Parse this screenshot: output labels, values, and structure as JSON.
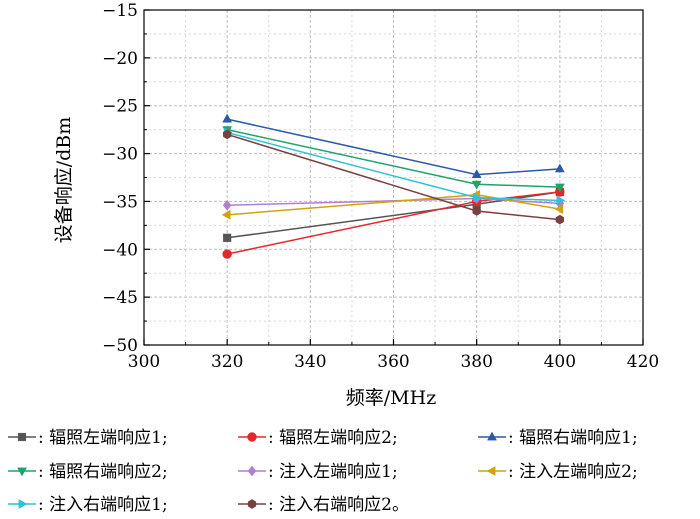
{
  "chart_data": {
    "type": "line",
    "xlabel": "频率/MHz",
    "ylabel": "设备响应/dBm",
    "xlim": [
      300,
      420
    ],
    "ylim": [
      -50,
      -15
    ],
    "xticks": [
      300,
      320,
      340,
      360,
      380,
      400,
      420
    ],
    "yticks": [
      -50,
      -45,
      -40,
      -35,
      -30,
      -25,
      -20,
      -15
    ],
    "grid": true,
    "legend_position": "bottom",
    "x": [
      320,
      380,
      400
    ],
    "series": [
      {
        "legend_text": ": 辐照左端响应1;",
        "marker": "square",
        "color": "#555555",
        "values": [
          -38.8,
          -35.3,
          -34.0
        ]
      },
      {
        "legend_text": ": 辐照左端响应2;",
        "marker": "circle",
        "color": "#e8262a",
        "values": [
          -40.5,
          -35.0,
          -34.0
        ]
      },
      {
        "legend_text": ": 辐照右端响应1;",
        "marker": "triangle-up",
        "color": "#2c5aa8",
        "values": [
          -26.4,
          -32.2,
          -31.6
        ]
      },
      {
        "legend_text": ": 辐照右端响应2;",
        "marker": "triangle-down",
        "color": "#20a36a",
        "values": [
          -27.5,
          -33.2,
          -33.5
        ]
      },
      {
        "legend_text": ": 注入左端响应1;",
        "marker": "diamond",
        "color": "#b07fd0",
        "values": [
          -35.4,
          -34.7,
          -35.2
        ]
      },
      {
        "legend_text": ": 注入左端响应2;",
        "marker": "triangle-left",
        "color": "#d4a20a",
        "values": [
          -36.4,
          -34.3,
          -35.8
        ]
      },
      {
        "legend_text": ": 注入右端响应1;",
        "marker": "triangle-right",
        "color": "#30c0d8",
        "values": [
          -27.8,
          -34.6,
          -34.9
        ]
      },
      {
        "legend_text": ": 注入右端响应2。",
        "marker": "hexagon",
        "color": "#7a4040",
        "values": [
          -28.0,
          -36.0,
          -36.9
        ]
      }
    ]
  }
}
